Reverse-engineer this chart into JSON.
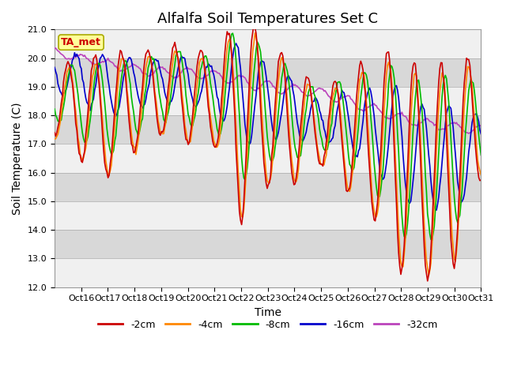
{
  "title": "Alfalfa Soil Temperatures Set C",
  "xlabel": "Time",
  "ylabel": "Soil Temperature (C)",
  "ylim": [
    12.0,
    21.0
  ],
  "yticks": [
    12.0,
    13.0,
    14.0,
    15.0,
    16.0,
    17.0,
    18.0,
    19.0,
    20.0,
    21.0
  ],
  "xtick_labels": [
    "Oct 16",
    "Oct 17",
    "Oct 18",
    "Oct 19",
    "Oct 20",
    "Oct 21",
    "Oct 22",
    "Oct 23",
    "Oct 24",
    "Oct 25",
    "Oct 26",
    "Oct 27",
    "Oct 28",
    "Oct 29",
    "Oct 30",
    "Oct 31"
  ],
  "colors": {
    "-2cm": "#cc0000",
    "-4cm": "#ff8800",
    "-8cm": "#00bb00",
    "-16cm": "#0000cc",
    "-32cm": "#bb44bb"
  },
  "legend_labels": [
    "-2cm",
    "-4cm",
    "-8cm",
    "-16cm",
    "-32cm"
  ],
  "annotation_text": "TA_met",
  "annotation_color": "#cc0000",
  "annotation_bg": "#ffff99",
  "annotation_edge": "#aaaa00",
  "background_color": "#ffffff",
  "plot_bg_color": "#d8d8d8",
  "white_band_color": "#f0f0f0",
  "title_fontsize": 13,
  "axis_label_fontsize": 10,
  "tick_fontsize": 8,
  "legend_fontsize": 9,
  "linewidth": 1.2
}
